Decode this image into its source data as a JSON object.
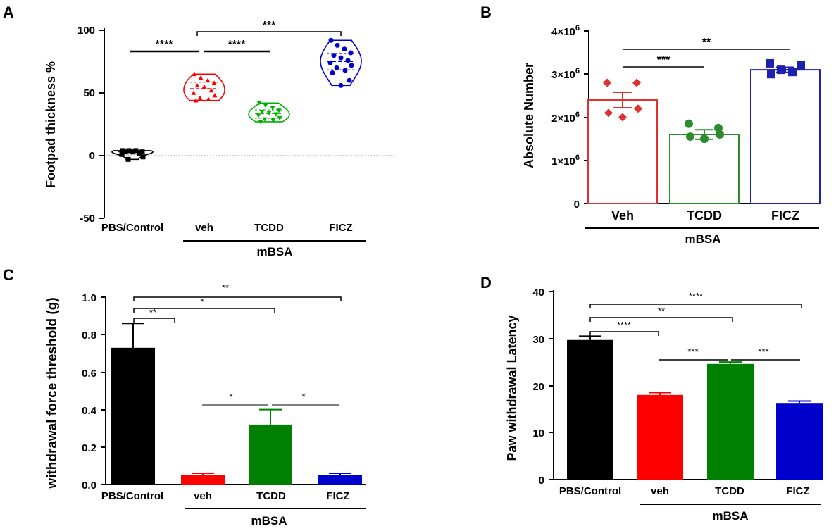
{
  "chart_data": [
    {
      "panel": "A",
      "type": "violin",
      "ylabel": "Footpad thickness %",
      "ylim": [
        -50,
        100
      ],
      "yticks": [
        "100",
        "50",
        "0",
        "-50"
      ],
      "categories": [
        "PBS/Control",
        "veh",
        "TCDD",
        "FICZ"
      ],
      "group_label": "mBSA",
      "colors": [
        "#000000",
        "#ff0000",
        "#00b000",
        "#0000cc"
      ],
      "markers": [
        "square",
        "triangle",
        "triangle-down",
        "circle"
      ],
      "series": [
        {
          "name": "PBS/Control",
          "values": [
            4,
            4,
            4,
            3,
            3,
            3,
            2,
            1,
            -1,
            -3
          ]
        },
        {
          "name": "veh",
          "values": [
            65,
            62,
            60,
            58,
            56,
            55,
            52,
            50,
            48,
            46,
            45,
            44
          ]
        },
        {
          "name": "TCDD",
          "values": [
            42,
            40,
            38,
            36,
            35,
            34,
            33,
            32,
            30,
            29,
            28,
            27
          ]
        },
        {
          "name": "FICZ",
          "values": [
            92,
            88,
            85,
            82,
            80,
            78,
            76,
            74,
            72,
            70,
            68,
            66,
            60,
            56
          ]
        }
      ],
      "significance": [
        {
          "from": "PBS/Control",
          "to": "veh",
          "label": "****"
        },
        {
          "from": "veh",
          "to": "TCDD",
          "label": "****"
        },
        {
          "from": "veh",
          "to": "FICZ",
          "label": "***"
        }
      ]
    },
    {
      "panel": "B",
      "type": "bar",
      "ylabel": "Absolute Number",
      "ylim": [
        0,
        4000000
      ],
      "yticks": [
        {
          "mantissa": "4×10",
          "exp": "6"
        },
        {
          "mantissa": "3×10",
          "exp": "6"
        },
        {
          "mantissa": "2×10",
          "exp": "6"
        },
        {
          "mantissa": "1×10",
          "exp": "6"
        },
        {
          "mantissa": "0",
          "exp": ""
        }
      ],
      "categories": [
        "Veh",
        "TCDD",
        "FICZ"
      ],
      "group_label": "mBSA",
      "colors": [
        "#e03030",
        "#2e8b2e",
        "#2020b0"
      ],
      "markers": [
        "diamond",
        "circle",
        "square"
      ],
      "values": [
        2400000,
        1600000,
        3100000
      ],
      "errors": [
        180000,
        110000,
        60000
      ],
      "points": [
        [
          2800000,
          2800000,
          2200000,
          2100000,
          2000000
        ],
        [
          1850000,
          1750000,
          1600000,
          1550000,
          1500000
        ],
        [
          3250000,
          3200000,
          3100000,
          3050000,
          3000000
        ]
      ],
      "significance": [
        {
          "from": "Veh",
          "to": "TCDD",
          "label": "***"
        },
        {
          "from": "Veh",
          "to": "FICZ",
          "label": "**"
        }
      ]
    },
    {
      "panel": "C",
      "type": "bar",
      "ylabel": "withdrawal force threshold (g)",
      "ylim": [
        0,
        1.0
      ],
      "yticks": [
        "1.0",
        "0.8",
        "0.6",
        "0.4",
        "0.2",
        "0.0"
      ],
      "categories": [
        "PBS/Control",
        "veh",
        "TCDD",
        "FICZ"
      ],
      "group_label": "mBSA",
      "colors": [
        "#000000",
        "#ff0000",
        "#008000",
        "#0000cc"
      ],
      "values": [
        0.73,
        0.05,
        0.32,
        0.05
      ],
      "errors": [
        0.13,
        0.01,
        0.08,
        0.01
      ],
      "significance": [
        {
          "from": "PBS/Control",
          "to": "FICZ",
          "label": "**"
        },
        {
          "from": "PBS/Control",
          "to": "TCDD",
          "label": "*"
        },
        {
          "from": "PBS/Control",
          "to": "veh",
          "label": "**"
        },
        {
          "from": "veh",
          "to": "TCDD",
          "label": "*"
        },
        {
          "from": "TCDD",
          "to": "FICZ",
          "label": "*"
        }
      ]
    },
    {
      "panel": "D",
      "type": "bar",
      "ylabel": "Paw withdrawal Latency",
      "ylim": [
        0,
        40
      ],
      "yticks": [
        "40",
        "30",
        "20",
        "10",
        "0"
      ],
      "categories": [
        "PBS/Control",
        "veh",
        "TCDD",
        "FICZ"
      ],
      "group_label": "mBSA",
      "colors": [
        "#000000",
        "#ff0000",
        "#008000",
        "#0000cc"
      ],
      "values": [
        29.7,
        18.0,
        24.6,
        16.3
      ],
      "errors": [
        0.8,
        0.5,
        0.4,
        0.4
      ],
      "significance": [
        {
          "from": "PBS/Control",
          "to": "FICZ",
          "label": "****"
        },
        {
          "from": "PBS/Control",
          "to": "TCDD",
          "label": "**"
        },
        {
          "from": "PBS/Control",
          "to": "veh",
          "label": "****"
        },
        {
          "from": "veh",
          "to": "TCDD",
          "label": "***"
        },
        {
          "from": "TCDD",
          "to": "FICZ",
          "label": "***"
        }
      ]
    }
  ]
}
